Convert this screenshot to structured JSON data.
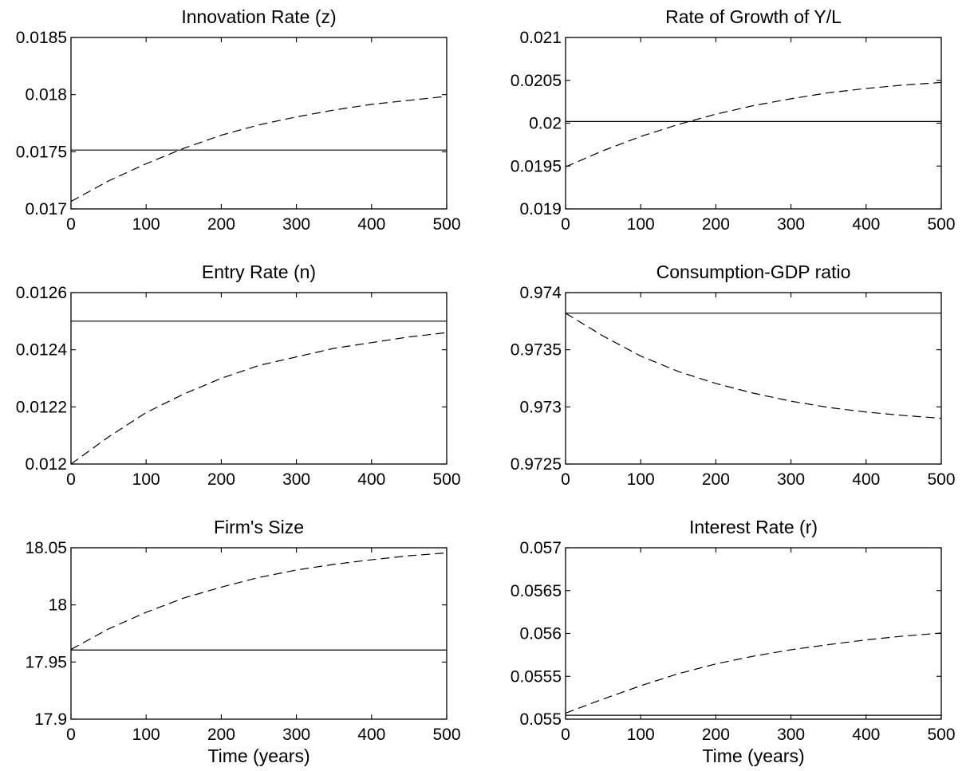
{
  "figure": {
    "x_axis_label": "Time (years)",
    "line_color": "#000000"
  },
  "chart_data": [
    {
      "type": "line",
      "title": "Innovation Rate (z)",
      "xlabel": "",
      "ylabel": "",
      "xlim": [
        0,
        500
      ],
      "ylim": [
        0.017,
        0.0185
      ],
      "x_ticks": [
        0,
        100,
        200,
        300,
        400,
        500
      ],
      "x_tick_labels": [
        "0",
        "100",
        "200",
        "300",
        "400",
        "500"
      ],
      "y_ticks": [
        0.017,
        0.0175,
        0.018,
        0.0185
      ],
      "y_tick_labels": [
        "0.017",
        "0.0175",
        "0.018",
        "0.0185"
      ],
      "grid": false,
      "series": [
        {
          "style": "solid",
          "x": [
            0,
            500
          ],
          "values": [
            0.017515,
            0.017515
          ]
        },
        {
          "style": "dashed",
          "x": [
            0,
            50,
            100,
            150,
            200,
            250,
            300,
            350,
            400,
            450,
            500
          ],
          "values": [
            0.017065,
            0.017245,
            0.017395,
            0.01753,
            0.017645,
            0.017735,
            0.017805,
            0.017865,
            0.017915,
            0.01795,
            0.017985
          ]
        }
      ]
    },
    {
      "type": "line",
      "title": "Rate of Growth of Y/L",
      "xlabel": "",
      "ylabel": "",
      "xlim": [
        0,
        500
      ],
      "ylim": [
        0.019,
        0.021
      ],
      "x_ticks": [
        0,
        100,
        200,
        300,
        400,
        500
      ],
      "x_tick_labels": [
        "0",
        "100",
        "200",
        "300",
        "400",
        "500"
      ],
      "y_ticks": [
        0.019,
        0.0195,
        0.02,
        0.0205,
        0.021
      ],
      "y_tick_labels": [
        "0.019",
        "0.0195",
        "0.02",
        "0.0205",
        "0.021"
      ],
      "grid": false,
      "series": [
        {
          "style": "solid",
          "x": [
            0,
            500
          ],
          "values": [
            0.02002,
            0.02002
          ]
        },
        {
          "style": "dashed",
          "x": [
            0,
            50,
            100,
            150,
            200,
            250,
            300,
            350,
            400,
            450,
            500
          ],
          "values": [
            0.01949,
            0.01968,
            0.019845,
            0.019985,
            0.020105,
            0.020205,
            0.020285,
            0.020355,
            0.020405,
            0.020445,
            0.020475
          ]
        }
      ]
    },
    {
      "type": "line",
      "title": "Entry Rate (n)",
      "xlabel": "",
      "ylabel": "",
      "xlim": [
        0,
        500
      ],
      "ylim": [
        0.012,
        0.0126
      ],
      "x_ticks": [
        0,
        100,
        200,
        300,
        400,
        500
      ],
      "x_tick_labels": [
        "0",
        "100",
        "200",
        "300",
        "400",
        "500"
      ],
      "y_ticks": [
        0.012,
        0.0122,
        0.0124,
        0.0126
      ],
      "y_tick_labels": [
        "0.012",
        "0.0122",
        "0.0124",
        "0.0126"
      ],
      "grid": false,
      "series": [
        {
          "style": "solid",
          "x": [
            0,
            500
          ],
          "values": [
            0.0125,
            0.0125
          ]
        },
        {
          "style": "dashed",
          "x": [
            0,
            50,
            100,
            150,
            200,
            250,
            300,
            350,
            400,
            450,
            500
          ],
          "values": [
            0.012,
            0.012095,
            0.01218,
            0.012245,
            0.0123,
            0.012345,
            0.012375,
            0.012405,
            0.012425,
            0.012445,
            0.01246
          ]
        }
      ]
    },
    {
      "type": "line",
      "title": "Consumption-GDP ratio",
      "xlabel": "",
      "ylabel": "",
      "xlim": [
        0,
        500
      ],
      "ylim": [
        0.9725,
        0.974
      ],
      "x_ticks": [
        0,
        100,
        200,
        300,
        400,
        500
      ],
      "x_tick_labels": [
        "0",
        "100",
        "200",
        "300",
        "400",
        "500"
      ],
      "y_ticks": [
        0.9725,
        0.973,
        0.9735,
        0.974
      ],
      "y_tick_labels": [
        "0.9725",
        "0.973",
        "0.9735",
        "0.974"
      ],
      "grid": false,
      "series": [
        {
          "style": "solid",
          "x": [
            0,
            500
          ],
          "values": [
            0.97382,
            0.97382
          ]
        },
        {
          "style": "dashed",
          "x": [
            0,
            50,
            100,
            150,
            200,
            250,
            300,
            350,
            400,
            450,
            500
          ],
          "values": [
            0.97382,
            0.97362,
            0.973445,
            0.97331,
            0.973205,
            0.97312,
            0.97305,
            0.972995,
            0.972955,
            0.972925,
            0.9729
          ]
        }
      ]
    },
    {
      "type": "line",
      "title": "Firm's Size",
      "xlabel": "Time (years)",
      "ylabel": "",
      "xlim": [
        0,
        500
      ],
      "ylim": [
        17.9,
        18.05
      ],
      "x_ticks": [
        0,
        100,
        200,
        300,
        400,
        500
      ],
      "x_tick_labels": [
        "0",
        "100",
        "200",
        "300",
        "400",
        "500"
      ],
      "y_ticks": [
        17.9,
        17.95,
        18,
        18.05
      ],
      "y_tick_labels": [
        "17.9",
        "17.95",
        "18",
        "18.05"
      ],
      "grid": false,
      "series": [
        {
          "style": "solid",
          "x": [
            0,
            500
          ],
          "values": [
            17.9605,
            17.9605
          ]
        },
        {
          "style": "dashed",
          "x": [
            0,
            50,
            100,
            150,
            200,
            250,
            300,
            350,
            400,
            450,
            500
          ],
          "values": [
            17.961,
            17.979,
            17.9935,
            18.006,
            18.0155,
            18.024,
            18.0305,
            18.0355,
            18.0395,
            18.043,
            18.0455
          ]
        }
      ]
    },
    {
      "type": "line",
      "title": "Interest Rate (r)",
      "xlabel": "Time (years)",
      "ylabel": "",
      "xlim": [
        0,
        500
      ],
      "ylim": [
        0.055,
        0.057
      ],
      "x_ticks": [
        0,
        100,
        200,
        300,
        400,
        500
      ],
      "x_tick_labels": [
        "0",
        "100",
        "200",
        "300",
        "400",
        "500"
      ],
      "y_ticks": [
        0.055,
        0.0555,
        0.056,
        0.0565,
        0.057
      ],
      "y_tick_labels": [
        "0.055",
        "0.0555",
        "0.056",
        "0.0565",
        "0.057"
      ],
      "grid": false,
      "series": [
        {
          "style": "solid",
          "x": [
            0,
            500
          ],
          "values": [
            0.055045,
            0.055045
          ]
        },
        {
          "style": "dashed",
          "x": [
            0,
            50,
            100,
            150,
            200,
            250,
            300,
            350,
            400,
            450,
            500
          ],
          "values": [
            0.05507,
            0.055235,
            0.05539,
            0.05553,
            0.055645,
            0.055735,
            0.05581,
            0.05587,
            0.055925,
            0.05597,
            0.056005
          ]
        }
      ]
    }
  ]
}
